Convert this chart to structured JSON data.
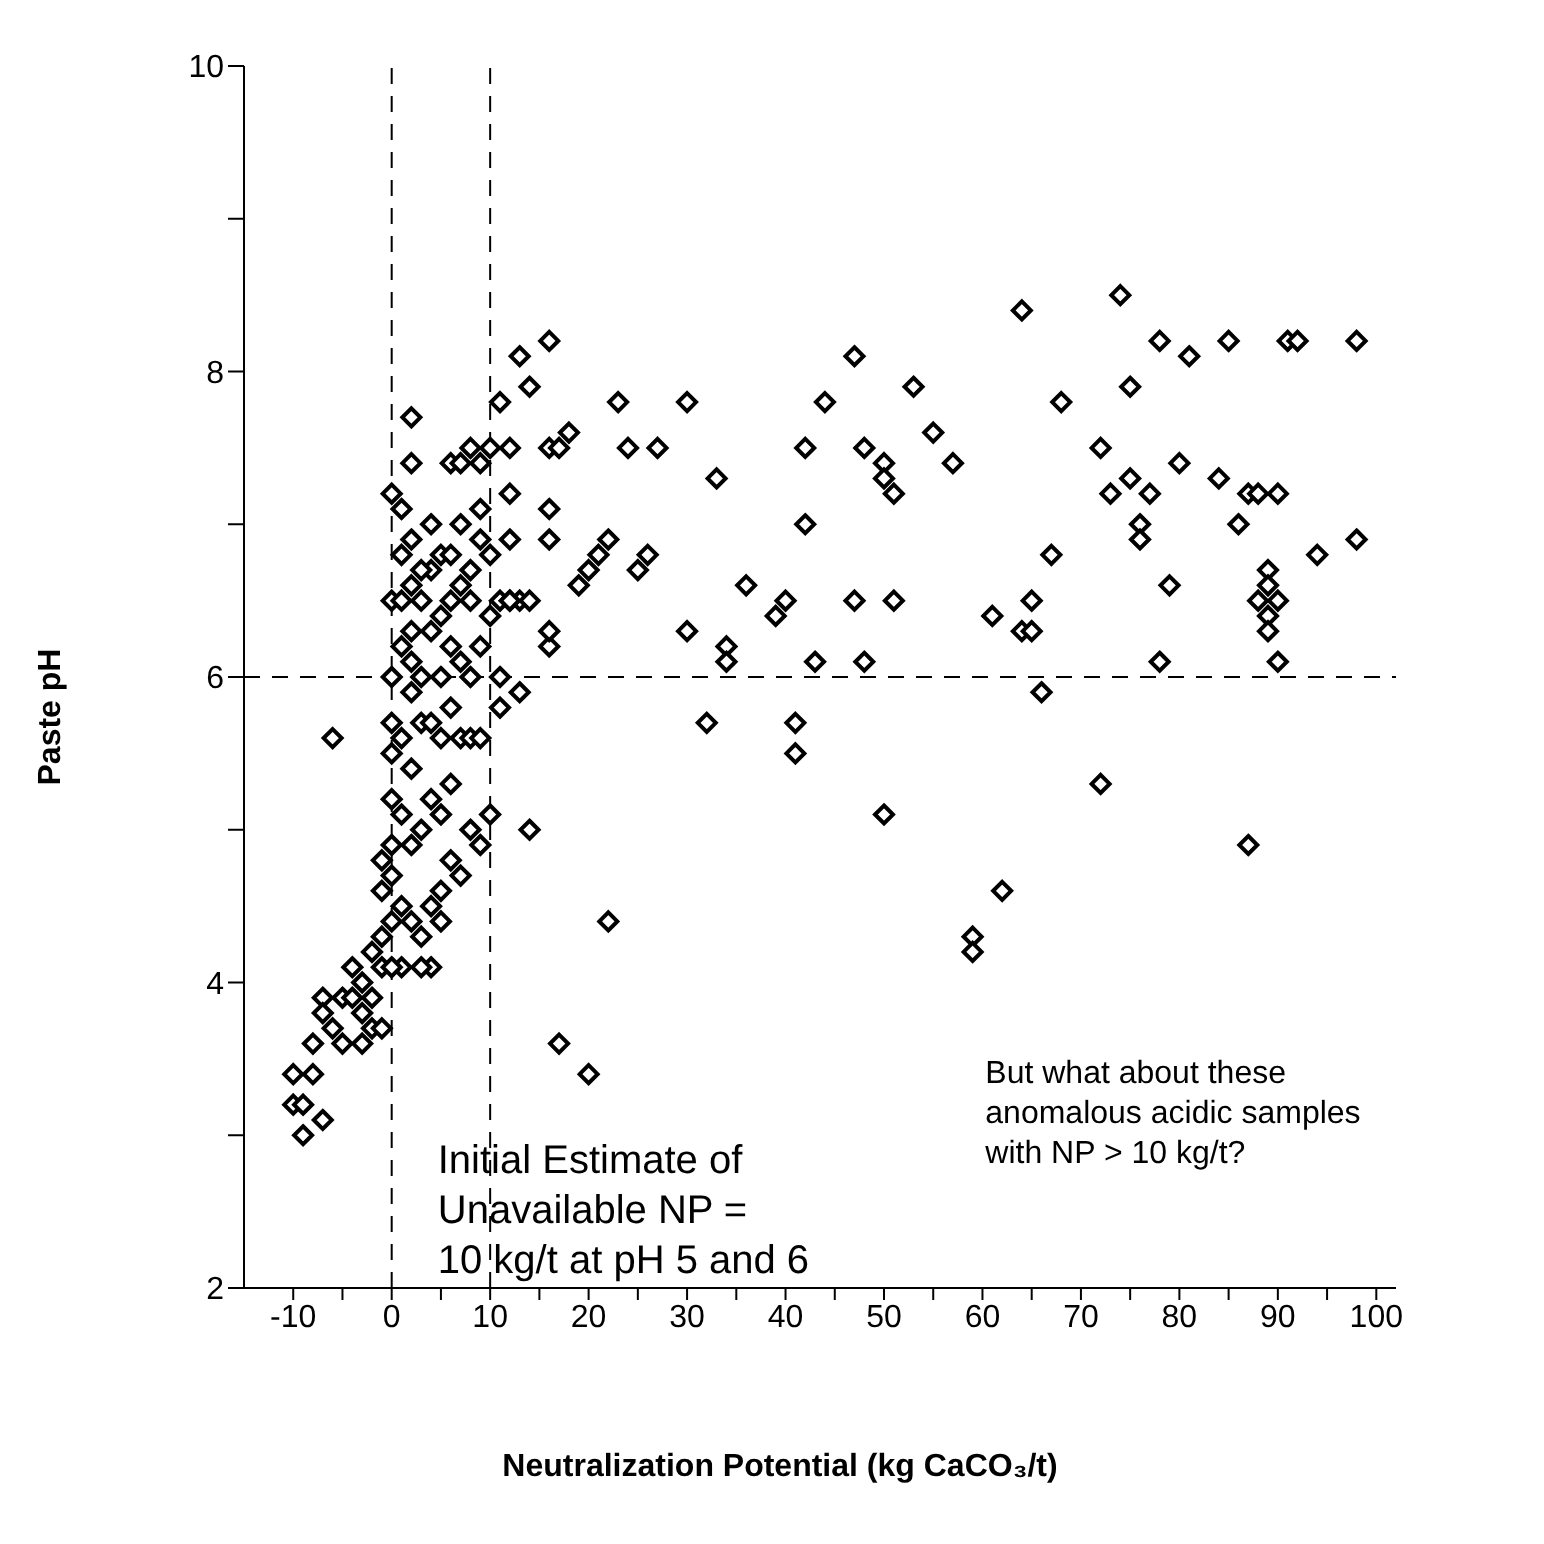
{
  "chart_data": {
    "type": "scatter",
    "xlabel": "Neutralization Potential (kg CaCO₃/t)",
    "ylabel": "Paste pH",
    "xlim": [
      -15,
      102
    ],
    "ylim": [
      2,
      10
    ],
    "xticks": [
      -10,
      {
        "value": -5,
        "label": null
      },
      0,
      {
        "value": 5,
        "label": null
      },
      10,
      {
        "value": 15,
        "label": null
      },
      20,
      {
        "value": 25,
        "label": null
      },
      30,
      {
        "value": 35,
        "label": null
      },
      40,
      {
        "value": 45,
        "label": null
      },
      50,
      {
        "value": 55,
        "label": null
      },
      60,
      {
        "value": 65,
        "label": null
      },
      70,
      {
        "value": 75,
        "label": null
      },
      80,
      {
        "value": 85,
        "label": null
      },
      90,
      {
        "value": 95,
        "label": null
      },
      100
    ],
    "yticks": [
      2,
      {
        "value": 3,
        "label": null
      },
      4,
      {
        "value": 5,
        "label": null
      },
      6,
      {
        "value": 7,
        "label": null
      },
      8,
      {
        "value": 9,
        "label": null
      },
      10
    ],
    "marker": "diamond",
    "legend": false,
    "ref_lines": [
      {
        "axis": "x",
        "value": 0,
        "line_style": "dashed",
        "color": "#000000"
      },
      {
        "axis": "y",
        "value": 6,
        "line_style": "dashed",
        "color": "#000000"
      },
      {
        "axis": "x",
        "value": 10,
        "line_style": "dashed",
        "color": "#000000"
      }
    ],
    "annotations": [
      "Initial Estimate of\nUnavailable NP =\n10 kg/t at pH 5 and 6",
      "But what about these\nanomalous acidic samples\nwith NP > 10 kg/t?"
    ],
    "series": [
      {
        "color": "#000000",
        "x": [
          74,
          64,
          47,
          13,
          16,
          23,
          30,
          85,
          91,
          92,
          98,
          78,
          81,
          53,
          75,
          14,
          44,
          68,
          18,
          24,
          27,
          42,
          48,
          55,
          57,
          50,
          72,
          80,
          16,
          17,
          50,
          51,
          73,
          75,
          77,
          84,
          87,
          88,
          90,
          76,
          76,
          86,
          94,
          98,
          33,
          42,
          16,
          16,
          22,
          21,
          20,
          26,
          25,
          36,
          19,
          67,
          79,
          89,
          89,
          90,
          89,
          88,
          89,
          30,
          34,
          34,
          40,
          39,
          47,
          51,
          61,
          64,
          65,
          65,
          43,
          48,
          78,
          90,
          66,
          32,
          41,
          41,
          50,
          72,
          62,
          87,
          59,
          59,
          22,
          17,
          20,
          14,
          13,
          13,
          14,
          11,
          12,
          16,
          16,
          -6,
          -10,
          -10,
          -9,
          -9,
          -8,
          -8,
          -7,
          -7,
          -7,
          -6,
          -5,
          -4,
          -4,
          -3,
          -3,
          -2,
          -2,
          -2,
          -1,
          -1,
          -1,
          -1,
          -1,
          0,
          0,
          0,
          0,
          0,
          0,
          0,
          0,
          0,
          1,
          1,
          1,
          1,
          1,
          1,
          1,
          2,
          2,
          2,
          2,
          2,
          2,
          2,
          2,
          2,
          3,
          3,
          3,
          3,
          3,
          4,
          4,
          4,
          4,
          4,
          4,
          4,
          5,
          5,
          5,
          5,
          5,
          6,
          6,
          6,
          6,
          6,
          6,
          7,
          7,
          7,
          7,
          7,
          7,
          8,
          8,
          8,
          8,
          8,
          9,
          9,
          9,
          9,
          9,
          10,
          10,
          10,
          10,
          11,
          11,
          11,
          12,
          12,
          5,
          3,
          -3,
          -5,
          0,
          1,
          2,
          3,
          5,
          6,
          8,
          9,
          12,
          12
        ],
        "values": [
          8.5,
          8.4,
          8.1,
          8.1,
          8.2,
          7.8,
          7.8,
          8.2,
          8.2,
          8.2,
          8.2,
          8.2,
          8.1,
          7.9,
          7.9,
          7.9,
          7.8,
          7.8,
          7.6,
          7.5,
          7.5,
          7.5,
          7.5,
          7.6,
          7.4,
          7.4,
          7.5,
          7.4,
          7.5,
          7.5,
          7.3,
          7.2,
          7.2,
          7.3,
          7.2,
          7.3,
          7.2,
          7.2,
          7.2,
          7.0,
          6.9,
          7.0,
          6.8,
          6.9,
          7.3,
          7.0,
          7.1,
          6.9,
          6.9,
          6.8,
          6.7,
          6.8,
          6.7,
          6.6,
          6.6,
          6.8,
          6.6,
          6.7,
          6.6,
          6.5,
          6.4,
          6.5,
          6.3,
          6.3,
          6.2,
          6.1,
          6.5,
          6.4,
          6.5,
          6.5,
          6.4,
          6.3,
          6.5,
          6.3,
          6.1,
          6.1,
          6.1,
          6.1,
          5.9,
          5.7,
          5.7,
          5.5,
          5.1,
          5.3,
          4.6,
          4.9,
          4.3,
          4.2,
          4.4,
          3.6,
          3.4,
          5.0,
          5.9,
          6.5,
          6.5,
          6.5,
          6.5,
          6.2,
          6.3,
          5.6,
          3.4,
          3.2,
          3.2,
          3.0,
          3.4,
          3.6,
          3.9,
          3.1,
          3.8,
          3.7,
          3.9,
          3.9,
          4.1,
          3.6,
          4.0,
          3.7,
          3.9,
          4.2,
          3.7,
          4.1,
          4.3,
          4.6,
          4.8,
          4.7,
          4.4,
          4.9,
          5.2,
          5.5,
          5.7,
          6.0,
          6.5,
          7.2,
          7.1,
          6.8,
          6.2,
          5.6,
          5.1,
          4.5,
          4.1,
          7.7,
          7.4,
          6.9,
          6.6,
          6.3,
          5.9,
          5.4,
          4.9,
          4.4,
          6.0,
          6.5,
          5.0,
          4.3,
          5.7,
          7.0,
          6.7,
          6.3,
          5.7,
          5.2,
          4.5,
          4.1,
          6.8,
          6.4,
          5.6,
          5.1,
          4.6,
          7.4,
          6.8,
          6.5,
          5.8,
          5.3,
          4.8,
          7.4,
          7.0,
          6.6,
          6.1,
          5.6,
          4.7,
          7.5,
          6.5,
          6.0,
          5.6,
          5.0,
          7.4,
          6.9,
          6.2,
          5.6,
          4.9,
          7.5,
          6.8,
          6.4,
          5.1,
          7.8,
          6.0,
          5.8,
          7.2,
          6.9,
          4.4,
          4.1,
          3.8,
          3.6,
          4.1,
          6.5,
          6.1,
          6.7,
          6.0,
          6.2,
          6.7,
          7.1,
          6.5,
          7.5
        ]
      }
    ]
  }
}
